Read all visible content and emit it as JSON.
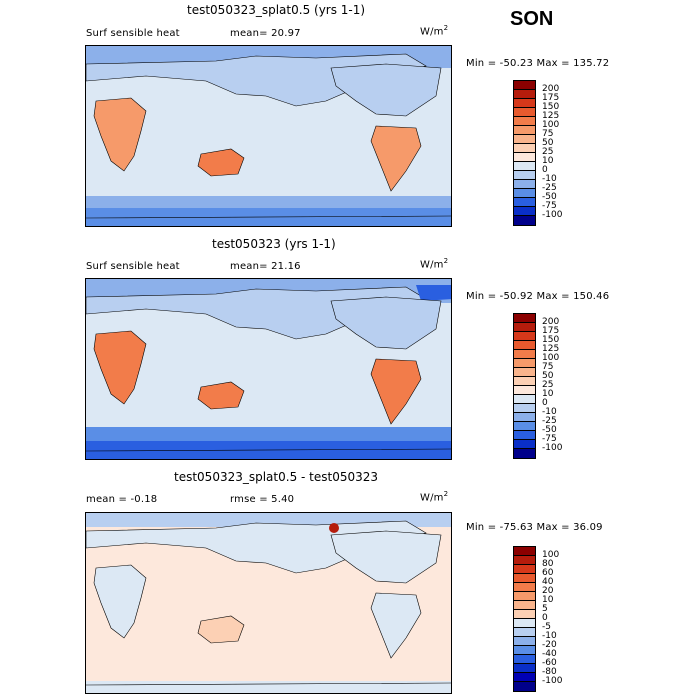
{
  "season": "SON",
  "units_main": "W/m",
  "units_exp": "2",
  "panels": [
    {
      "title": "test050323_splat0.5 (yrs 1-1)",
      "left_label": "Surf sensible heat",
      "stat_label": "mean=  20.97",
      "minmax": "Min = -50.23 Max = 135.72"
    },
    {
      "title": "test050323 (yrs 1-1)",
      "left_label": "Surf sensible heat",
      "stat_label": "mean=  21.16",
      "minmax": "Min = -50.92 Max = 150.46"
    },
    {
      "title": "test050323_splat0.5 - test050323",
      "left_label": "mean =  -0.18",
      "stat_label": "rmse =   5.40",
      "minmax": "Min = -75.63 Max =  36.09"
    }
  ],
  "colorbar_abs": {
    "labels": [
      "200",
      "175",
      "150",
      "125",
      "100",
      "75",
      "50",
      "25",
      "10",
      "0",
      "-10",
      "-25",
      "-50",
      "-75",
      "-100"
    ],
    "colors": [
      "#8b0000",
      "#b51c0c",
      "#d6381a",
      "#e85a2e",
      "#f27c4a",
      "#f69a6a",
      "#f9b48c",
      "#fcd0b4",
      "#fde8dc",
      "#dce8f4",
      "#b8cff0",
      "#8cb0ea",
      "#5a8ee6",
      "#2a5fe0",
      "#0a2fc8",
      "#00008b"
    ]
  },
  "colorbar_diff": {
    "labels": [
      "100",
      "80",
      "60",
      "40",
      "20",
      "10",
      "5",
      "0",
      "-5",
      "-10",
      "-20",
      "-40",
      "-60",
      "-80",
      "-100"
    ],
    "colors": [
      "#8b0000",
      "#b51c0c",
      "#d6381a",
      "#e85a2e",
      "#f27c4a",
      "#f69a6a",
      "#f9b48c",
      "#fcd0b4",
      "#dce8f4",
      "#b8cff0",
      "#8cb0ea",
      "#5a8ee6",
      "#2a5fe0",
      "#0a2fc8",
      "#0000b4",
      "#00008b"
    ]
  }
}
